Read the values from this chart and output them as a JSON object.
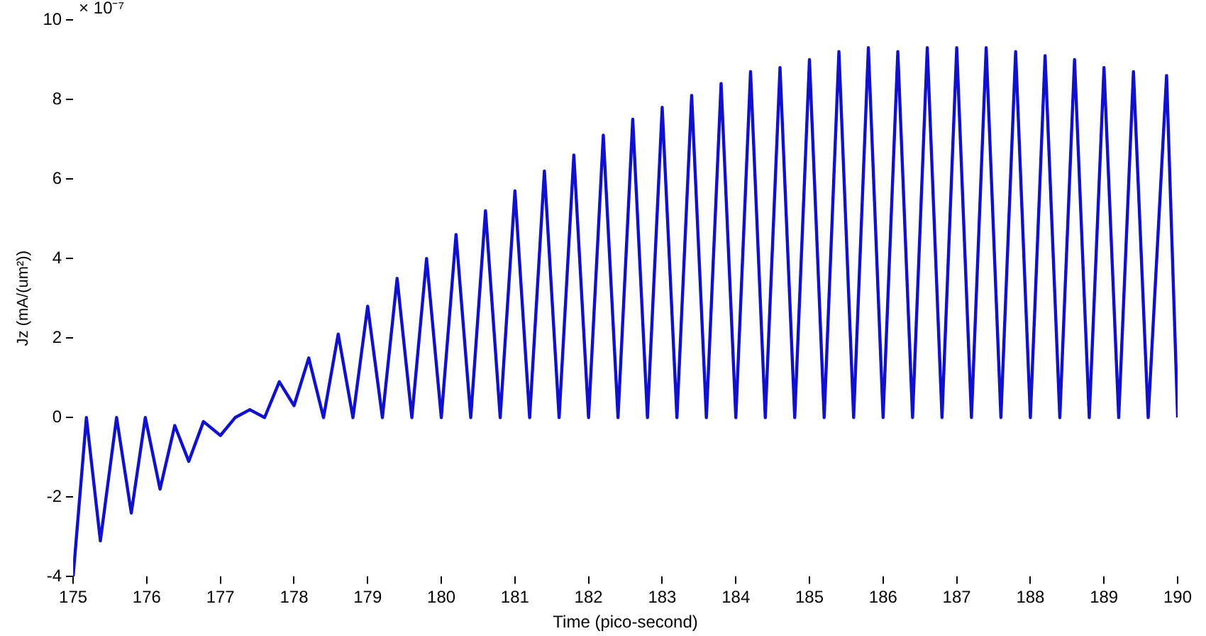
{
  "chart_data": {
    "type": "line",
    "xlabel": "Time (pico-second)",
    "ylabel": "Jz (mA/(um²))",
    "annotations": [
      "× 10⁻⁷"
    ],
    "xlim": [
      175,
      190
    ],
    "xticks": [
      175,
      176,
      177,
      178,
      179,
      180,
      181,
      182,
      183,
      184,
      185,
      186,
      187,
      188,
      189,
      190
    ],
    "ylim": [
      -4,
      10
    ],
    "yticks": [
      -4,
      -2,
      0,
      2,
      4,
      6,
      8,
      10
    ],
    "grid": false,
    "legend": false,
    "marker": "none",
    "line_style": "solid",
    "x": [
      175,
      175.18,
      175.37,
      175.59,
      175.79,
      175.98,
      176.18,
      176.38,
      176.57,
      176.77,
      177.0,
      177.2,
      177.4,
      177.6,
      177.8,
      178.0,
      178.2,
      178.4,
      178.6,
      178.8,
      179.0,
      179.2,
      179.4,
      179.6,
      179.8,
      180.0,
      180.2,
      180.4,
      180.6,
      180.8,
      181.0,
      181.2,
      181.4,
      181.6,
      181.8,
      182.0,
      182.2,
      182.4,
      182.6,
      182.8,
      183.0,
      183.2,
      183.4,
      183.6,
      183.8,
      184.0,
      184.2,
      184.4,
      184.6,
      184.8,
      185.0,
      185.2,
      185.4,
      185.6,
      185.8,
      186.0,
      186.2,
      186.4,
      186.6,
      186.8,
      187.0,
      187.2,
      187.4,
      187.6,
      187.8,
      188.0,
      188.2,
      188.4,
      188.6,
      188.8,
      189.0,
      189.2,
      189.4,
      189.6,
      189.85,
      190.0
    ],
    "series": [
      {
        "color": "#1010d0",
        "values": [
          -4,
          0,
          -3.1,
          0,
          -2.4,
          0,
          -1.8,
          -0.2,
          -1.1,
          -0.1,
          -0.45,
          0,
          0.2,
          0,
          0.9,
          0.3,
          1.5,
          0,
          2.1,
          0,
          2.8,
          0,
          3.5,
          0,
          4.0,
          0,
          4.6,
          0,
          5.2,
          0,
          5.7,
          0,
          6.2,
          0,
          6.6,
          0,
          7.1,
          0,
          7.5,
          0,
          7.8,
          0,
          8.1,
          0,
          8.4,
          0,
          8.7,
          0,
          8.8,
          0,
          9.0,
          0,
          9.2,
          0,
          9.3,
          0,
          9.2,
          0,
          9.3,
          0,
          9.3,
          0,
          9.3,
          0,
          9.2,
          0,
          9.1,
          0,
          9.0,
          0,
          8.8,
          0,
          8.7,
          0,
          8.6,
          0
        ]
      }
    ]
  }
}
